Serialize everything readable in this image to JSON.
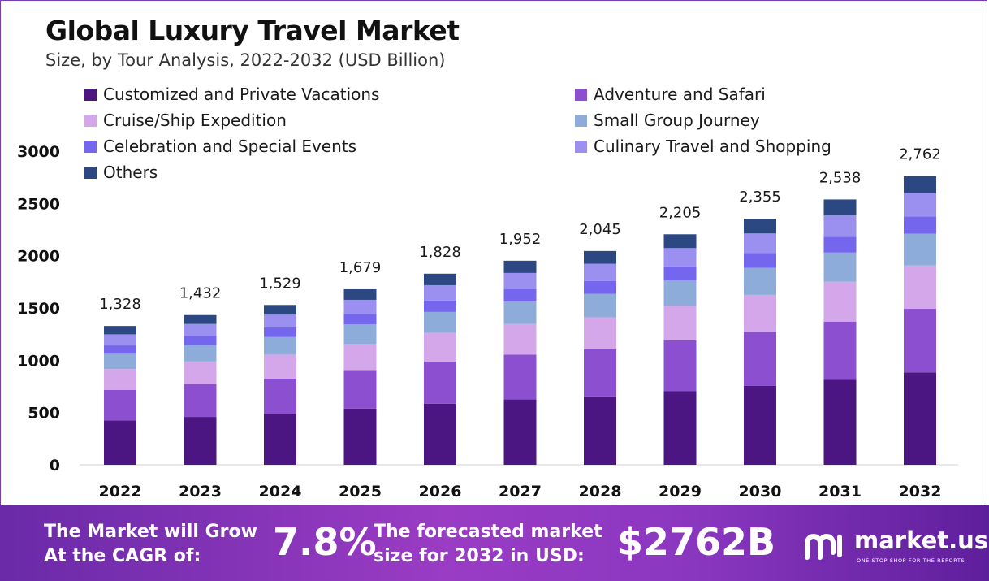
{
  "chart_data": {
    "type": "bar",
    "stacked": true,
    "title": "Global Luxury Travel Market",
    "subtitle": "Size, by Tour Analysis, 2022-2032 (USD Billion)",
    "categories": [
      "2022",
      "2023",
      "2024",
      "2025",
      "2026",
      "2027",
      "2028",
      "2029",
      "2030",
      "2031",
      "2032"
    ],
    "totals": [
      1328,
      1432,
      1529,
      1679,
      1828,
      1952,
      2045,
      2205,
      2355,
      2538,
      2762
    ],
    "total_labels": [
      "1,328",
      "1,432",
      "1,529",
      "1,679",
      "1,828",
      "1,952",
      "2,045",
      "2,205",
      "2,355",
      "2,538",
      "2,762"
    ],
    "yticks": [
      "0",
      "500",
      "1000",
      "1500",
      "2000",
      "2500",
      "3000"
    ],
    "ylim": [
      0,
      3000
    ],
    "series": [
      {
        "name": "Customized and Private Vacations",
        "color": "#4b1682",
        "values": [
          425,
          458,
          489,
          537,
          585,
          625,
          654,
          706,
          754,
          812,
          884
        ]
      },
      {
        "name": "Adventure and Safari",
        "color": "#8c4fcf",
        "values": [
          292,
          315,
          336,
          369,
          402,
          429,
          450,
          485,
          518,
          558,
          608
        ]
      },
      {
        "name": "Cruise/Ship Expedition",
        "color": "#d3a7ea",
        "values": [
          199,
          215,
          229,
          252,
          274,
          293,
          307,
          331,
          353,
          381,
          414
        ]
      },
      {
        "name": "Small Group Journey",
        "color": "#8eacd9",
        "values": [
          146,
          158,
          168,
          185,
          201,
          215,
          225,
          243,
          259,
          279,
          304
        ]
      },
      {
        "name": "Celebration and Special Events",
        "color": "#7566ee",
        "values": [
          80,
          86,
          92,
          101,
          110,
          117,
          123,
          132,
          141,
          152,
          166
        ]
      },
      {
        "name": "Culinary Travel and Shopping",
        "color": "#9b8ff0",
        "values": [
          106,
          115,
          122,
          134,
          146,
          156,
          164,
          176,
          188,
          203,
          221
        ]
      },
      {
        "name": "Others",
        "color": "#2c4882",
        "values": [
          80,
          85,
          93,
          101,
          110,
          117,
          122,
          132,
          142,
          153,
          165
        ]
      }
    ]
  },
  "banner": {
    "cagr_text_1": "The Market will Grow",
    "cagr_text_2": "At the CAGR of:",
    "cagr_value": "7.8%",
    "forecast_text_1": "The forecasted market",
    "forecast_text_2": "size for 2032 in USD:",
    "forecast_value": "$2762B"
  },
  "logo": {
    "name": "market.us",
    "tagline": "ONE STOP SHOP FOR THE REPORTS"
  }
}
